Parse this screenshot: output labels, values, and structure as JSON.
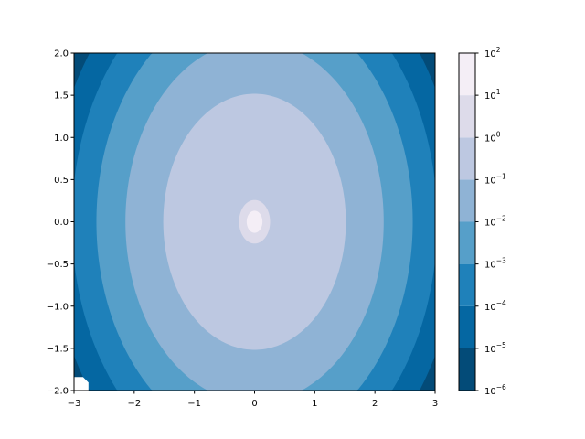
{
  "chart_data": {
    "type": "contour",
    "function": "z = exp(-x^2 - y^2) + 50*exp(-100x^2 - 100y^2), log-spaced filled contour levels, bottom-left corner masked",
    "xlim": [
      -3,
      3
    ],
    "ylim": [
      -2,
      2
    ],
    "x_ticks": [
      "−3",
      "−2",
      "−1",
      "0",
      "1",
      "2",
      "3"
    ],
    "x_tick_values": [
      -3,
      -2,
      -1,
      0,
      1,
      2,
      3
    ],
    "y_ticks": [
      "−2.0",
      "−1.5",
      "−1.0",
      "−0.5",
      "0.0",
      "0.5",
      "1.0",
      "1.5",
      "2.0"
    ],
    "y_tick_values": [
      -2,
      -1.5,
      -1,
      -0.5,
      0,
      0.5,
      1,
      1.5,
      2
    ],
    "levels_exponents": [
      -6,
      -5,
      -4,
      -3,
      -2,
      -1,
      0,
      1,
      2
    ],
    "colorbar": {
      "scale": "log",
      "colormap": "PuBu_r",
      "tick_labels": [
        {
          "base": "10",
          "exp": "−6"
        },
        {
          "base": "10",
          "exp": "−5"
        },
        {
          "base": "10",
          "exp": "−4"
        },
        {
          "base": "10",
          "exp": "−3"
        },
        {
          "base": "10",
          "exp": "−2"
        },
        {
          "base": "10",
          "exp": "−1"
        },
        {
          "base": "10",
          "exp": "0"
        },
        {
          "base": "10",
          "exp": "1"
        },
        {
          "base": "10",
          "exp": "2"
        }
      ],
      "colors": [
        "#034b78",
        "#0567a2",
        "#1f81ba",
        "#569fc9",
        "#8fb3d5",
        "#bdc8e1",
        "#dddbea",
        "#f4eef6"
      ]
    },
    "grid": false,
    "masked_region": {
      "x": [
        -3,
        -2.76
      ],
      "y": [
        -2,
        -1.84
      ]
    }
  }
}
